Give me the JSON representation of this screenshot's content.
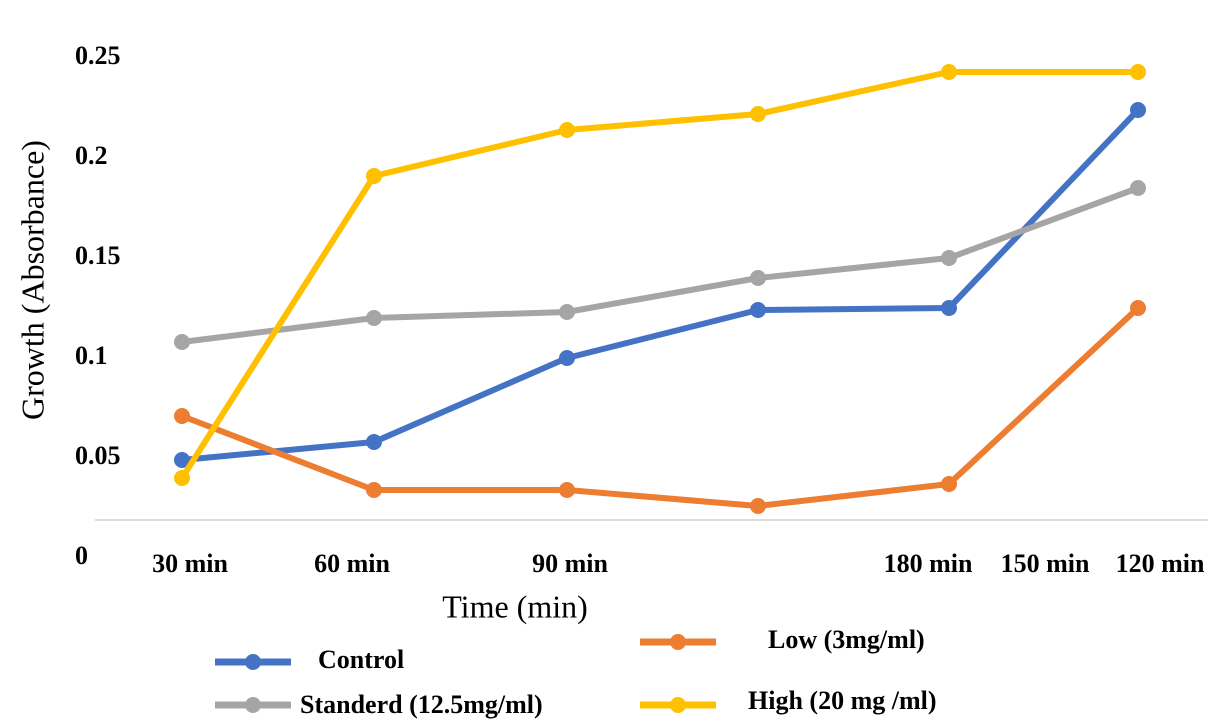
{
  "chart_data": {
    "type": "line",
    "xlabel": "Time (min)",
    "ylabel": "Growth (Absorbance)",
    "categories": [
      "30 min",
      "60 min",
      "90 min",
      null,
      null,
      null
    ],
    "xtick_labels": [
      "30 min",
      "60 min",
      "90 min",
      "180 min",
      "150 min",
      "120 min"
    ],
    "series": [
      {
        "name": "Control",
        "color": "#4472c4",
        "values": [
          0.049,
          0.058,
          0.1,
          0.124,
          0.125,
          0.224
        ]
      },
      {
        "name": "Standerd (12.5mg/ml)",
        "color": "#a5a5a5",
        "values": [
          0.108,
          0.12,
          0.123,
          0.14,
          0.15,
          0.185
        ]
      },
      {
        "name": "Low (3mg/ml)",
        "color": "#ed7d31",
        "values": [
          0.071,
          0.034,
          0.034,
          0.026,
          0.037,
          0.125
        ]
      },
      {
        "name": "High (20 mg /ml)",
        "color": "#ffc000",
        "values": [
          0.04,
          0.191,
          0.214,
          0.222,
          0.243,
          0.243
        ]
      }
    ],
    "ylim": [
      0,
      0.25
    ],
    "yticks": [
      0,
      0.05,
      0.1,
      0.15,
      0.2,
      0.25
    ],
    "grid": false
  }
}
